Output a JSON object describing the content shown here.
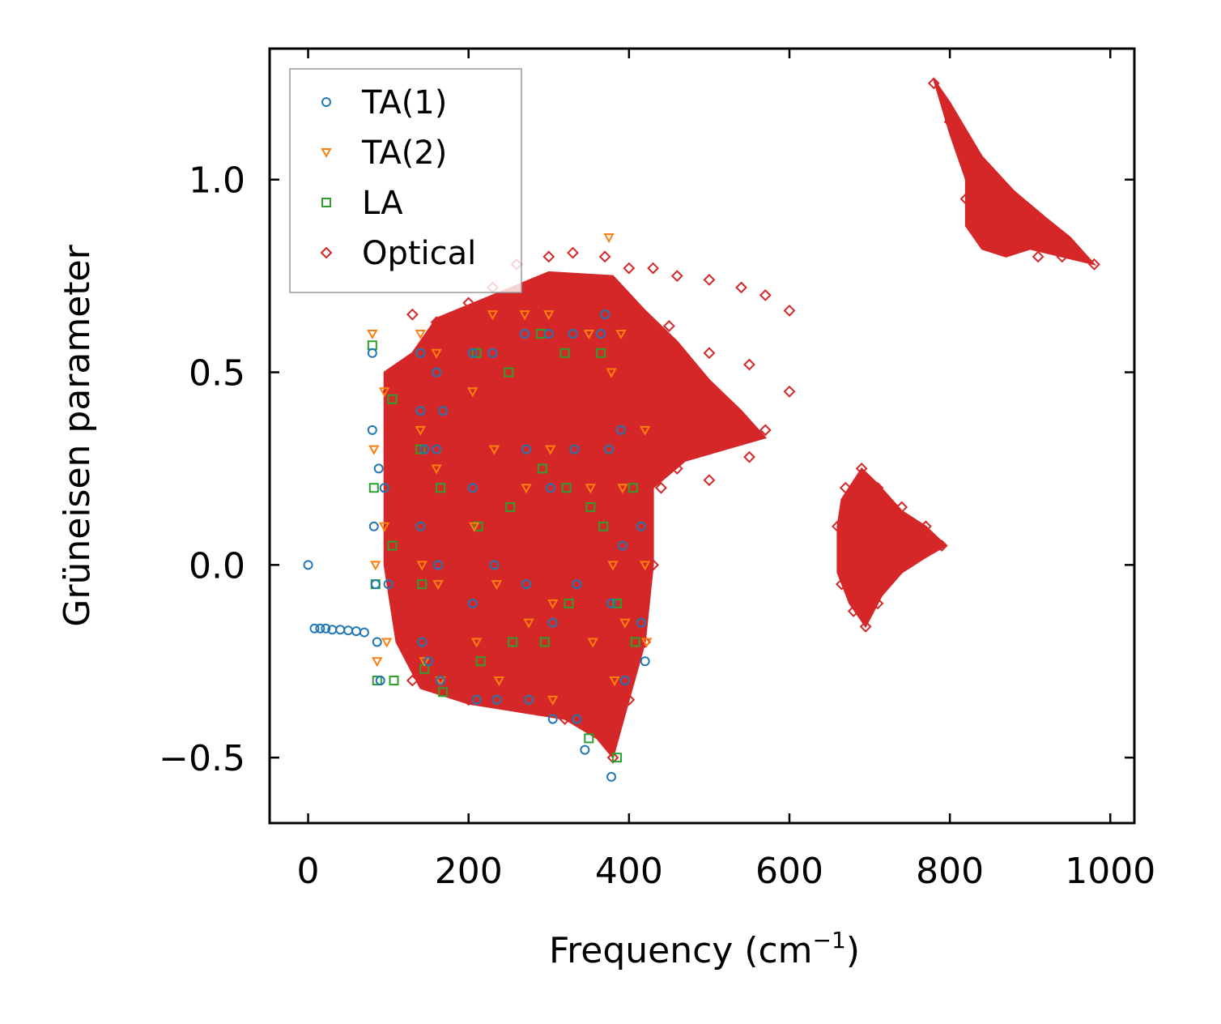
{
  "chart_data": {
    "type": "scatter",
    "title": "",
    "xlabel": "Frequency (cm",
    "xlabel_sup": "−1",
    "xlabel_end": ")",
    "ylabel": "Grüneisen parameter",
    "xlim": [
      -48,
      1030
    ],
    "ylim": [
      -0.67,
      1.34
    ],
    "xticks": [
      0,
      200,
      400,
      600,
      800,
      1000
    ],
    "xtick_labels": [
      "0",
      "200",
      "400",
      "600",
      "800",
      "1000"
    ],
    "yticks": [
      -0.5,
      0.0,
      0.5,
      1.0
    ],
    "ytick_labels": [
      "−0.5",
      "0.0",
      "0.5",
      "1.0"
    ],
    "grid": false,
    "legend_position": "top-left",
    "series": [
      {
        "name": "TA(1)",
        "marker": "circle",
        "color": "#1f77b4",
        "points": [
          [
            0,
            0.0
          ],
          [
            8,
            -0.165
          ],
          [
            15,
            -0.165
          ],
          [
            22,
            -0.165
          ],
          [
            30,
            -0.168
          ],
          [
            40,
            -0.168
          ],
          [
            50,
            -0.17
          ],
          [
            60,
            -0.172
          ],
          [
            70,
            -0.175
          ],
          [
            80,
            0.55
          ],
          [
            80,
            0.35
          ],
          [
            82,
            0.1
          ],
          [
            84,
            -0.05
          ],
          [
            86,
            -0.2
          ],
          [
            88,
            0.25
          ],
          [
            90,
            -0.3
          ],
          [
            95,
            0.2
          ],
          [
            100,
            -0.05
          ],
          [
            140,
            0.55
          ],
          [
            140,
            0.4
          ],
          [
            140,
            0.1
          ],
          [
            142,
            -0.2
          ],
          [
            145,
            0.3
          ],
          [
            150,
            -0.25
          ],
          [
            160,
            0.5
          ],
          [
            160,
            0.3
          ],
          [
            162,
            0.0
          ],
          [
            165,
            -0.3
          ],
          [
            168,
            0.4
          ],
          [
            205,
            0.55
          ],
          [
            205,
            0.2
          ],
          [
            205,
            -0.1
          ],
          [
            210,
            -0.35
          ],
          [
            230,
            0.55
          ],
          [
            232,
            0.0
          ],
          [
            235,
            -0.35
          ],
          [
            270,
            0.6
          ],
          [
            272,
            0.3
          ],
          [
            272,
            -0.05
          ],
          [
            275,
            -0.35
          ],
          [
            300,
            0.6
          ],
          [
            302,
            0.2
          ],
          [
            305,
            -0.15
          ],
          [
            305,
            -0.4
          ],
          [
            330,
            0.6
          ],
          [
            332,
            0.3
          ],
          [
            335,
            -0.05
          ],
          [
            335,
            -0.4
          ],
          [
            345,
            -0.48
          ],
          [
            365,
            0.6
          ],
          [
            370,
            0.65
          ],
          [
            375,
            0.3
          ],
          [
            378,
            -0.1
          ],
          [
            378,
            -0.55
          ],
          [
            390,
            0.35
          ],
          [
            392,
            0.05
          ],
          [
            395,
            -0.3
          ],
          [
            415,
            0.1
          ],
          [
            415,
            -0.15
          ],
          [
            420,
            -0.25
          ]
        ]
      },
      {
        "name": "TA(2)",
        "marker": "triangle-down",
        "color": "#ff7f0e",
        "points": [
          [
            80,
            0.6
          ],
          [
            82,
            0.3
          ],
          [
            84,
            0.0
          ],
          [
            86,
            -0.25
          ],
          [
            95,
            0.45
          ],
          [
            95,
            0.1
          ],
          [
            98,
            -0.2
          ],
          [
            140,
            0.6
          ],
          [
            140,
            0.35
          ],
          [
            142,
            0.0
          ],
          [
            145,
            -0.25
          ],
          [
            160,
            0.55
          ],
          [
            160,
            0.25
          ],
          [
            162,
            -0.05
          ],
          [
            165,
            -0.3
          ],
          [
            205,
            0.45
          ],
          [
            207,
            0.1
          ],
          [
            210,
            -0.2
          ],
          [
            230,
            0.65
          ],
          [
            232,
            0.3
          ],
          [
            235,
            -0.05
          ],
          [
            238,
            -0.3
          ],
          [
            270,
            0.65
          ],
          [
            272,
            0.2
          ],
          [
            275,
            -0.15
          ],
          [
            300,
            0.65
          ],
          [
            302,
            0.3
          ],
          [
            305,
            -0.1
          ],
          [
            305,
            -0.35
          ],
          [
            350,
            0.6
          ],
          [
            352,
            0.2
          ],
          [
            355,
            -0.2
          ],
          [
            375,
            0.85
          ],
          [
            378,
            0.5
          ],
          [
            380,
            0.0
          ],
          [
            382,
            -0.3
          ],
          [
            390,
            0.6
          ],
          [
            392,
            0.2
          ],
          [
            395,
            -0.15
          ],
          [
            420,
            0.35
          ],
          [
            420,
            0.0
          ],
          [
            422,
            -0.2
          ]
        ]
      },
      {
        "name": "LA",
        "marker": "square",
        "color": "#2ca02c",
        "points": [
          [
            80,
            0.57
          ],
          [
            82,
            0.2
          ],
          [
            84,
            -0.05
          ],
          [
            86,
            -0.3
          ],
          [
            105,
            0.43
          ],
          [
            105,
            0.05
          ],
          [
            107,
            -0.3
          ],
          [
            140,
            0.3
          ],
          [
            142,
            -0.05
          ],
          [
            145,
            -0.27
          ],
          [
            165,
            0.2
          ],
          [
            168,
            -0.33
          ],
          [
            210,
            0.55
          ],
          [
            212,
            0.1
          ],
          [
            215,
            -0.25
          ],
          [
            250,
            0.5
          ],
          [
            252,
            0.15
          ],
          [
            255,
            -0.2
          ],
          [
            290,
            0.6
          ],
          [
            292,
            0.25
          ],
          [
            295,
            -0.2
          ],
          [
            320,
            0.55
          ],
          [
            322,
            0.2
          ],
          [
            325,
            -0.1
          ],
          [
            350,
            -0.45
          ],
          [
            352,
            0.15
          ],
          [
            365,
            0.55
          ],
          [
            368,
            0.1
          ],
          [
            385,
            -0.5
          ],
          [
            385,
            -0.1
          ],
          [
            405,
            0.2
          ],
          [
            408,
            -0.2
          ]
        ]
      },
      {
        "name": "Optical",
        "marker": "diamond",
        "color": "#d62728",
        "points": [
          [
            130,
            0.65
          ],
          [
            160,
            0.63
          ],
          [
            200,
            0.68
          ],
          [
            230,
            0.72
          ],
          [
            260,
            0.78
          ],
          [
            300,
            0.8
          ],
          [
            330,
            0.81
          ],
          [
            370,
            0.8
          ],
          [
            400,
            0.77
          ],
          [
            430,
            0.77
          ],
          [
            460,
            0.75
          ],
          [
            500,
            0.74
          ],
          [
            540,
            0.72
          ],
          [
            570,
            0.7
          ],
          [
            600,
            0.66
          ],
          [
            450,
            0.62
          ],
          [
            500,
            0.55
          ],
          [
            550,
            0.52
          ],
          [
            600,
            0.45
          ],
          [
            470,
            0.5
          ],
          [
            520,
            0.42
          ],
          [
            570,
            0.35
          ],
          [
            450,
            0.4
          ],
          [
            500,
            0.3
          ],
          [
            550,
            0.28
          ],
          [
            460,
            0.25
          ],
          [
            500,
            0.22
          ],
          [
            440,
            0.3
          ],
          [
            100,
            0.45
          ],
          [
            110,
            0.2
          ],
          [
            120,
            -0.1
          ],
          [
            130,
            -0.3
          ],
          [
            200,
            -0.35
          ],
          [
            260,
            -0.35
          ],
          [
            320,
            -0.4
          ],
          [
            380,
            -0.5
          ],
          [
            400,
            -0.35
          ],
          [
            420,
            -0.2
          ],
          [
            430,
            0.0
          ],
          [
            440,
            0.2
          ],
          [
            420,
            0.4
          ],
          [
            780,
            1.25
          ],
          [
            800,
            1.15
          ],
          [
            830,
            1.05
          ],
          [
            860,
            0.98
          ],
          [
            890,
            0.9
          ],
          [
            920,
            0.85
          ],
          [
            950,
            0.82
          ],
          [
            980,
            0.78
          ],
          [
            820,
            0.95
          ],
          [
            850,
            0.9
          ],
          [
            880,
            0.85
          ],
          [
            910,
            0.8
          ],
          [
            940,
            0.8
          ],
          [
            660,
            0.1
          ],
          [
            670,
            0.2
          ],
          [
            690,
            0.25
          ],
          [
            710,
            0.2
          ],
          [
            740,
            0.15
          ],
          [
            770,
            0.1
          ],
          [
            790,
            0.05
          ],
          [
            665,
            -0.05
          ],
          [
            680,
            -0.12
          ],
          [
            695,
            -0.16
          ],
          [
            710,
            -0.1
          ],
          [
            730,
            -0.02
          ],
          [
            760,
            0.03
          ]
        ]
      }
    ],
    "filled_regions": [
      {
        "name": "Optical dense band",
        "color": "#d62728",
        "polygon": [
          [
            95,
            0.5
          ],
          [
            130,
            0.55
          ],
          [
            160,
            0.64
          ],
          [
            230,
            0.7
          ],
          [
            300,
            0.76
          ],
          [
            380,
            0.75
          ],
          [
            420,
            0.66
          ],
          [
            460,
            0.58
          ],
          [
            500,
            0.48
          ],
          [
            540,
            0.4
          ],
          [
            570,
            0.33
          ],
          [
            520,
            0.3
          ],
          [
            470,
            0.27
          ],
          [
            430,
            0.2
          ],
          [
            430,
            0.0
          ],
          [
            420,
            -0.2
          ],
          [
            400,
            -0.35
          ],
          [
            380,
            -0.5
          ],
          [
            360,
            -0.45
          ],
          [
            320,
            -0.4
          ],
          [
            260,
            -0.38
          ],
          [
            200,
            -0.36
          ],
          [
            140,
            -0.32
          ],
          [
            110,
            -0.2
          ],
          [
            95,
            0.0
          ]
        ]
      },
      {
        "name": "Optical high-frequency branch",
        "color": "#d62728",
        "polygon": [
          [
            780,
            1.26
          ],
          [
            800,
            1.2
          ],
          [
            840,
            1.06
          ],
          [
            880,
            0.97
          ],
          [
            920,
            0.9
          ],
          [
            950,
            0.85
          ],
          [
            980,
            0.78
          ],
          [
            940,
            0.8
          ],
          [
            900,
            0.82
          ],
          [
            870,
            0.8
          ],
          [
            840,
            0.82
          ],
          [
            820,
            0.88
          ],
          [
            820,
            1.0
          ],
          [
            800,
            1.12
          ]
        ]
      },
      {
        "name": "Optical mid-frequency branch",
        "color": "#d62728",
        "polygon": [
          [
            660,
            0.1
          ],
          [
            665,
            0.17
          ],
          [
            690,
            0.25
          ],
          [
            710,
            0.21
          ],
          [
            740,
            0.14
          ],
          [
            770,
            0.1
          ],
          [
            795,
            0.05
          ],
          [
            770,
            0.02
          ],
          [
            740,
            -0.02
          ],
          [
            715,
            -0.08
          ],
          [
            695,
            -0.16
          ],
          [
            675,
            -0.1
          ],
          [
            660,
            -0.02
          ]
        ]
      }
    ]
  }
}
